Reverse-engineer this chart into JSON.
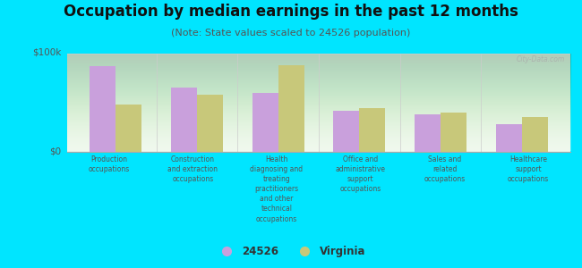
{
  "title": "Occupation by median earnings in the past 12 months",
  "subtitle": "(Note: State values scaled to 24526 population)",
  "categories": [
    "Production\noccupations",
    "Construction\nand extraction\noccupations",
    "Health\ndiagnosing and\ntreating\npractitioners\nand other\ntechnical\noccupations",
    "Office and\nadministrative\nsupport\noccupations",
    "Sales and\nrelated\noccupations",
    "Healthcare\nsupport\noccupations"
  ],
  "values_24526": [
    87000,
    65000,
    60000,
    42000,
    38000,
    28000
  ],
  "values_virginia": [
    48000,
    58000,
    88000,
    44000,
    40000,
    35000
  ],
  "color_24526": "#c9a0dc",
  "color_virginia": "#c8c87a",
  "ylim": [
    0,
    100000
  ],
  "yticks": [
    0,
    100000
  ],
  "ytick_labels": [
    "$0",
    "$100k"
  ],
  "bg_color": "#e8f5e3",
  "outer_bg": "#00e5ff",
  "legend_label_24526": "24526",
  "legend_label_virginia": "Virginia",
  "watermark": "City-Data.com",
  "title_fontsize": 12,
  "subtitle_fontsize": 8
}
